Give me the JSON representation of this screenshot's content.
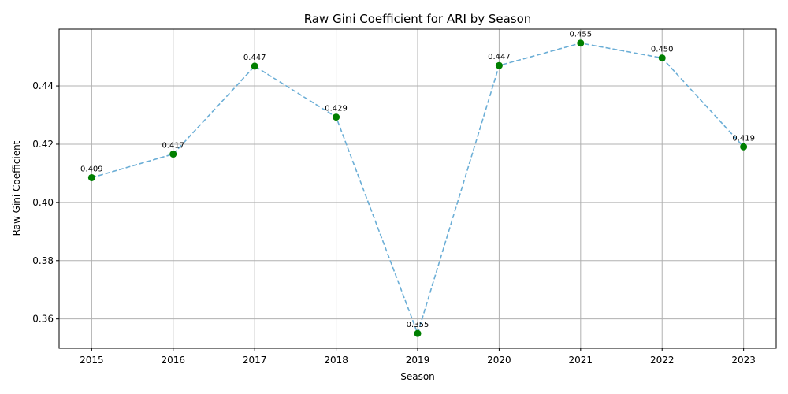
{
  "chart_data": {
    "type": "line",
    "title": "Raw Gini Coefficient for ARI by Season",
    "xlabel": "Season",
    "ylabel": "Raw Gini Coefficient",
    "categories": [
      "2015",
      "2016",
      "2017",
      "2018",
      "2019",
      "2020",
      "2021",
      "2022",
      "2023"
    ],
    "series": [
      {
        "values": [
          0.4085,
          0.4166,
          0.4468,
          0.4293,
          0.355,
          0.447,
          0.4547,
          0.4496,
          0.4191
        ],
        "labels": [
          "0.409",
          "0.417",
          "0.447",
          "0.429",
          "0.355",
          "0.447",
          "0.455",
          "0.450",
          "0.419"
        ],
        "line_color": "#6baed6",
        "line_style": "dashed",
        "marker_color": "#007f00"
      }
    ],
    "xlim": [
      2014.6,
      2023.4
    ],
    "ylim": [
      0.3499,
      0.4595
    ],
    "yticks": [
      0.36,
      0.38,
      0.4,
      0.42,
      0.44
    ],
    "ytick_labels": [
      "0.36",
      "0.38",
      "0.40",
      "0.42",
      "0.44"
    ],
    "grid": true,
    "legend": "none"
  }
}
